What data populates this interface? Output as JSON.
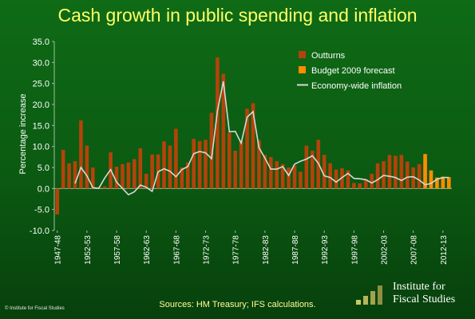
{
  "chart_data": {
    "type": "bar",
    "title": "Cash growth in public spending and inflation",
    "ylabel": "Percentage increase",
    "xlabel": "",
    "ylim": [
      -10,
      35
    ],
    "yticks": [
      "35.0",
      "30.0",
      "25.0",
      "20.0",
      "15.0",
      "10.0",
      "5.0",
      "0.0",
      "-5.0",
      "-10.0"
    ],
    "categories": [
      "1947-48",
      "1948-49",
      "1949-50",
      "1950-51",
      "1951-52",
      "1952-53",
      "1953-54",
      "1954-55",
      "1955-56",
      "1956-57",
      "1957-58",
      "1958-59",
      "1959-60",
      "1960-61",
      "1961-62",
      "1962-63",
      "1963-64",
      "1964-65",
      "1965-66",
      "1966-67",
      "1967-68",
      "1968-69",
      "1969-70",
      "1970-71",
      "1971-72",
      "1972-73",
      "1973-74",
      "1974-75",
      "1975-76",
      "1976-77",
      "1977-78",
      "1978-79",
      "1979-80",
      "1980-81",
      "1981-82",
      "1982-83",
      "1983-84",
      "1984-85",
      "1985-86",
      "1986-87",
      "1987-88",
      "1988-89",
      "1989-90",
      "1990-91",
      "1991-92",
      "1992-93",
      "1993-94",
      "1994-95",
      "1995-96",
      "1996-97",
      "1997-98",
      "1998-99",
      "1999-00",
      "2000-01",
      "2001-02",
      "2002-03",
      "2003-04",
      "2004-05",
      "2005-06",
      "2006-07",
      "2007-08",
      "2008-09",
      "2009-10",
      "2010-11",
      "2011-12",
      "2012-13",
      "2013-14"
    ],
    "xtick_labels": [
      "1947-48",
      "1952-53",
      "1957-58",
      "1962-63",
      "1967-68",
      "1972-73",
      "1977-78",
      "1982-83",
      "1987-88",
      "1992-93",
      "1997-98",
      "2002-03",
      "2007-08",
      "2012-13"
    ],
    "series": [
      {
        "name": "Outturns",
        "type": "bar",
        "color": "#b5420a",
        "values": [
          -6.2,
          9.2,
          6.0,
          6.5,
          16.2,
          10.2,
          5.0,
          0.3,
          0.5,
          8.6,
          5.2,
          5.8,
          6.2,
          7.0,
          9.6,
          3.5,
          8.1,
          8.1,
          11.2,
          10.2,
          14.2,
          5.0,
          6.2,
          11.8,
          11.3,
          11.6,
          18.0,
          31.2,
          27.3,
          13.3,
          9.0,
          11.2,
          19.0,
          20.3,
          11.5,
          8.0,
          7.5,
          6.5,
          5.8,
          5.0,
          5.5,
          4.0,
          10.2,
          9.0,
          11.6,
          8.0,
          6.0,
          4.5,
          4.8,
          4.3,
          1.3,
          1.2,
          2.2,
          3.5,
          6.0,
          6.5,
          8.0,
          7.8,
          8.0,
          6.4,
          5.0,
          5.8,
          6.6,
          null,
          null,
          null,
          null
        ]
      },
      {
        "name": "Budget 2009 forecast",
        "type": "bar",
        "color": "#ff8c00",
        "values": [
          null,
          null,
          null,
          null,
          null,
          null,
          null,
          null,
          null,
          null,
          null,
          null,
          null,
          null,
          null,
          null,
          null,
          null,
          null,
          null,
          null,
          null,
          null,
          null,
          null,
          null,
          null,
          null,
          null,
          null,
          null,
          null,
          null,
          null,
          null,
          null,
          null,
          null,
          null,
          null,
          null,
          null,
          null,
          null,
          null,
          null,
          null,
          null,
          null,
          null,
          null,
          null,
          null,
          null,
          null,
          null,
          null,
          null,
          null,
          null,
          null,
          null,
          8.2,
          4.3,
          2.6,
          2.8,
          2.7
        ]
      },
      {
        "name": "Economy-wide inflation",
        "type": "line",
        "color": "#d8d8d8",
        "values": [
          null,
          null,
          null,
          1.2,
          5.0,
          3.0,
          0.2,
          0.0,
          2.5,
          4.5,
          1.5,
          0.0,
          -1.5,
          -0.8,
          0.8,
          0.3,
          -0.7,
          4.0,
          4.7,
          4.1,
          2.8,
          4.5,
          5.2,
          8.3,
          8.8,
          8.5,
          7.1,
          18.5,
          25.5,
          13.5,
          13.6,
          10.8,
          17.0,
          18.3,
          9.7,
          7.2,
          4.6,
          4.6,
          5.2,
          3.1,
          5.8,
          6.5,
          7.0,
          7.8,
          6.0,
          3.0,
          2.6,
          1.5,
          2.6,
          3.6,
          2.4,
          2.3,
          2.1,
          1.3,
          2.1,
          3.1,
          2.9,
          2.6,
          1.9,
          2.7,
          2.8,
          2.0,
          0.9,
          1.2,
          2.2,
          2.6,
          2.6
        ]
      }
    ],
    "legend_position": "top-right",
    "grid": false
  },
  "source_note": "Sources: HM Treasury; IFS calculations.",
  "copyright": "© Institute for Fiscal Studies",
  "logo": {
    "line1": "Institute for",
    "line2": "Fiscal Studies"
  }
}
